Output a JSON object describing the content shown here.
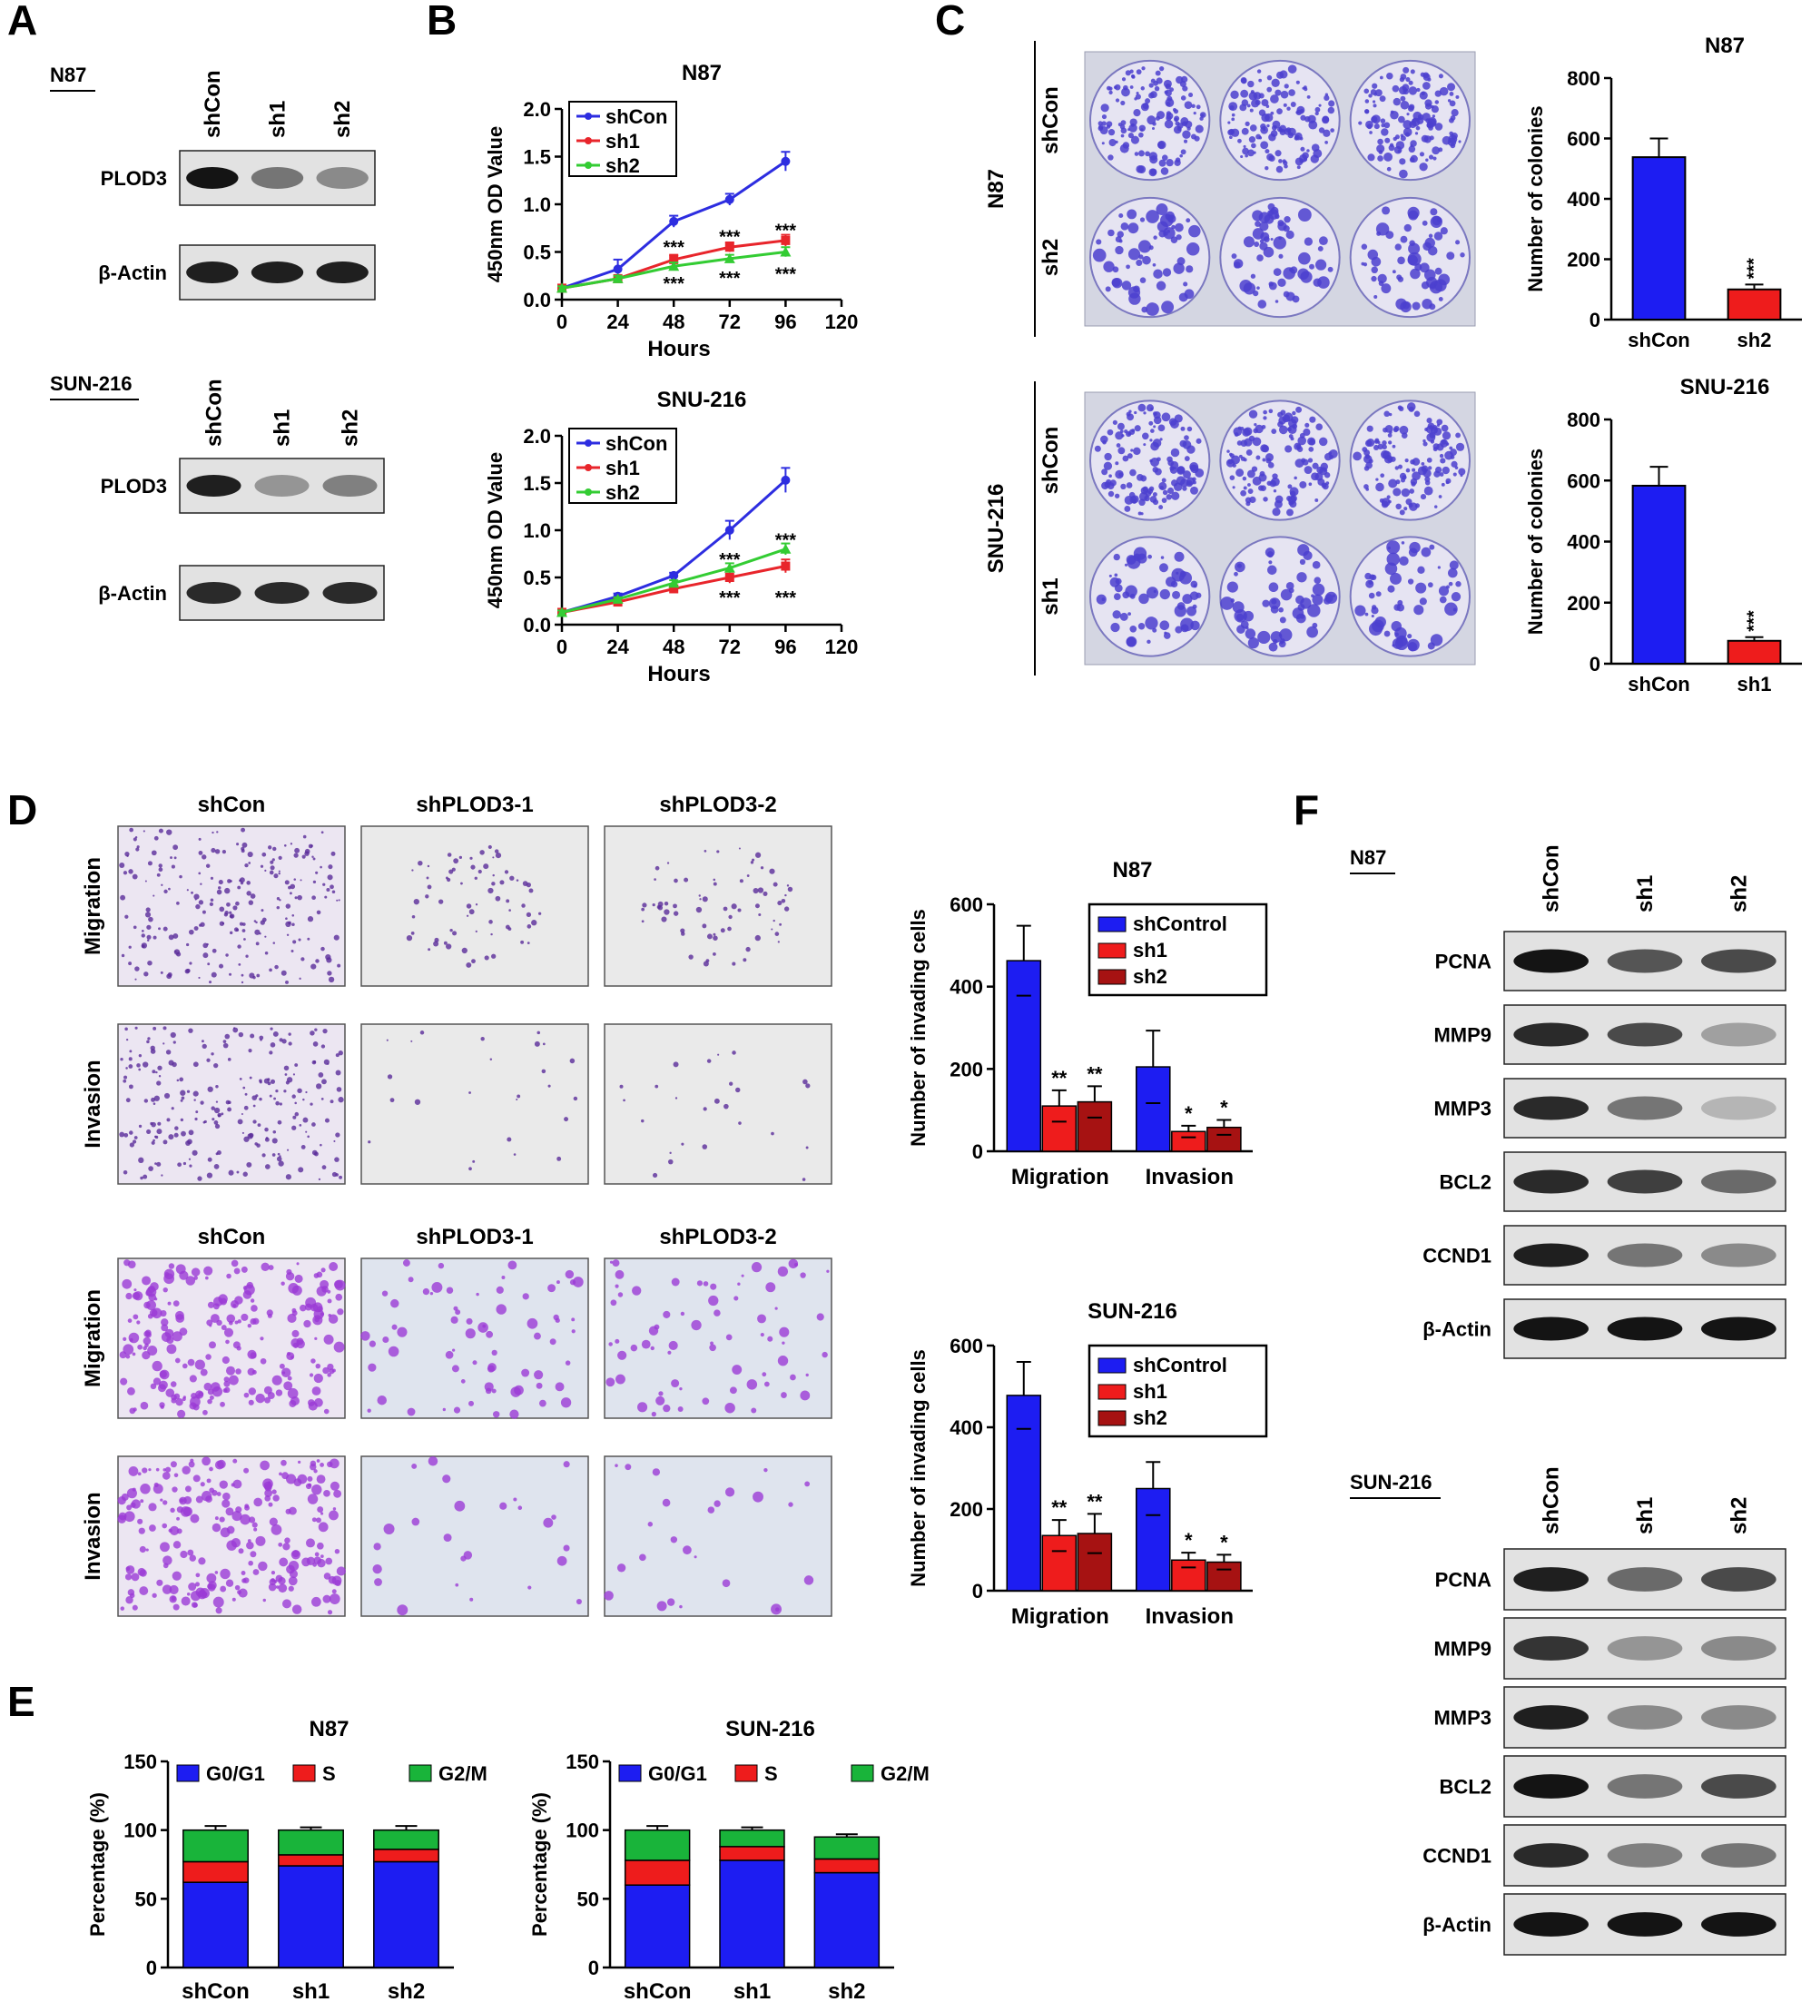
{
  "colors": {
    "blue": "#1d1df2",
    "red": "#ee1c1c",
    "green": "#19b43a",
    "darkred": "#a61212",
    "line_blue": "#2d2de0",
    "line_red": "#e8252b",
    "line_green": "#33cc33",
    "crystal_violet": "#4b3fcf",
    "purple_stain": "#9b3bd6"
  },
  "panel_letters": {
    "a": "A",
    "b": "B",
    "c": "C",
    "d": "D",
    "e": "E",
    "f": "F"
  },
  "panel_a": {
    "blots": [
      {
        "cell_line": "N87",
        "lanes": [
          "shCon",
          "sh1",
          "sh2"
        ],
        "bands": [
          "PLOD3",
          "β-Actin"
        ],
        "band_intensity": [
          [
            1.0,
            0.55,
            0.45
          ],
          [
            0.95,
            0.95,
            0.95
          ]
        ]
      },
      {
        "cell_line": "SUN-216",
        "lanes": [
          "shCon",
          "sh1",
          "sh2"
        ],
        "bands": [
          "PLOD3",
          "β-Actin"
        ],
        "band_intensity": [
          [
            0.95,
            0.4,
            0.5
          ],
          [
            0.9,
            0.9,
            0.9
          ]
        ]
      }
    ]
  },
  "panel_c": {
    "plate_images": [
      {
        "cell_line": "N87",
        "rows": [
          "shCon",
          "sh2"
        ]
      },
      {
        "cell_line": "SNU-216",
        "rows": [
          "shCon",
          "sh1"
        ]
      }
    ]
  },
  "panel_d": {
    "image_grids": [
      {
        "columns": [
          "shCon",
          "shPLOD3-1",
          "shPLOD3-2"
        ],
        "rows": [
          "Migration",
          "Invasion"
        ]
      },
      {
        "columns": [
          "shCon",
          "shPLOD3-1",
          "shPLOD3-2"
        ],
        "rows": [
          "Migration",
          "Invasion"
        ]
      }
    ]
  },
  "panel_f": {
    "blots": [
      {
        "cell_line": "N87",
        "lanes": [
          "shCon",
          "sh1",
          "sh2"
        ],
        "bands": [
          "PCNA",
          "MMP9",
          "MMP3",
          "BCL2",
          "CCND1",
          "β-Actin"
        ],
        "band_intensity": [
          [
            1.0,
            0.7,
            0.75
          ],
          [
            0.9,
            0.75,
            0.35
          ],
          [
            0.9,
            0.55,
            0.25
          ],
          [
            0.9,
            0.8,
            0.6
          ],
          [
            0.95,
            0.55,
            0.45
          ],
          [
            1.0,
            1.0,
            1.0
          ]
        ]
      },
      {
        "cell_line": "SUN-216",
        "lanes": [
          "shCon",
          "sh1",
          "sh2"
        ],
        "bands": [
          "PCNA",
          "MMP9",
          "MMP3",
          "BCL2",
          "CCND1",
          "β-Actin"
        ],
        "band_intensity": [
          [
            0.95,
            0.6,
            0.75
          ],
          [
            0.85,
            0.4,
            0.45
          ],
          [
            0.95,
            0.45,
            0.45
          ],
          [
            1.0,
            0.55,
            0.75
          ],
          [
            0.9,
            0.5,
            0.55
          ],
          [
            1.0,
            1.0,
            1.0
          ]
        ]
      }
    ]
  },
  "chart_data": [
    {
      "panel": "B",
      "type": "line",
      "title": "N87",
      "xlabel": "Hours",
      "ylabel": "450nm OD Value",
      "xlim": [
        0,
        120
      ],
      "ylim": [
        0,
        2.0
      ],
      "xticks": [
        "0",
        "24",
        "48",
        "72",
        "96",
        "120"
      ],
      "yticks": [
        "0.0",
        "0.5",
        "1.0",
        "1.5",
        "2.0"
      ],
      "x": [
        0,
        24,
        48,
        72,
        96
      ],
      "series": [
        {
          "name": "shCon",
          "values": [
            0.12,
            0.32,
            0.82,
            1.05,
            1.45
          ],
          "errors": [
            0.02,
            0.1,
            0.06,
            0.06,
            0.1
          ]
        },
        {
          "name": "sh1",
          "values": [
            0.12,
            0.22,
            0.42,
            0.55,
            0.62
          ],
          "errors": [
            0.02,
            0.03,
            0.05,
            0.05,
            0.06
          ]
        },
        {
          "name": "sh2",
          "values": [
            0.12,
            0.22,
            0.35,
            0.43,
            0.5
          ],
          "errors": [
            0.02,
            0.03,
            0.04,
            0.04,
            0.05
          ]
        }
      ],
      "annotations": [
        {
          "text": "***",
          "x": 48,
          "y": 0.56
        },
        {
          "text": "***",
          "x": 48,
          "y": 0.18
        },
        {
          "text": "***",
          "x": 72,
          "y": 0.67
        },
        {
          "text": "***",
          "x": 72,
          "y": 0.24
        },
        {
          "text": "***",
          "x": 96,
          "y": 0.74
        },
        {
          "text": "***",
          "x": 96,
          "y": 0.28
        }
      ],
      "legend": "top-left"
    },
    {
      "panel": "B",
      "type": "line",
      "title": "SNU-216",
      "xlabel": "Hours",
      "ylabel": "450nm OD Value",
      "xlim": [
        0,
        120
      ],
      "ylim": [
        0,
        2.0
      ],
      "xticks": [
        "0",
        "24",
        "48",
        "72",
        "96",
        "120"
      ],
      "yticks": [
        "0.0",
        "0.5",
        "1.0",
        "1.5",
        "2.0"
      ],
      "x": [
        0,
        24,
        48,
        72,
        96
      ],
      "series": [
        {
          "name": "shCon",
          "values": [
            0.13,
            0.3,
            0.52,
            1.0,
            1.53
          ],
          "errors": [
            0.02,
            0.03,
            0.03,
            0.1,
            0.13
          ]
        },
        {
          "name": "sh1",
          "values": [
            0.13,
            0.24,
            0.38,
            0.5,
            0.62
          ],
          "errors": [
            0.02,
            0.02,
            0.03,
            0.06,
            0.07
          ]
        },
        {
          "name": "sh2",
          "values": [
            0.13,
            0.27,
            0.44,
            0.6,
            0.8
          ],
          "errors": [
            0.02,
            0.02,
            0.03,
            0.05,
            0.06
          ]
        }
      ],
      "annotations": [
        {
          "text": "***",
          "x": 72,
          "y": 0.7
        },
        {
          "text": "***",
          "x": 72,
          "y": 0.3
        },
        {
          "text": "***",
          "x": 96,
          "y": 0.91
        },
        {
          "text": "***",
          "x": 96,
          "y": 0.3
        }
      ],
      "legend": "top-left"
    },
    {
      "panel": "C",
      "type": "bar",
      "title": "N87",
      "xlabel": "",
      "ylabel": "Number of colonies",
      "ylim": [
        0,
        800
      ],
      "yticks": [
        "0",
        "200",
        "400",
        "600",
        "800"
      ],
      "categories": [
        "shCon",
        "sh2"
      ],
      "values": [
        538,
        100
      ],
      "errors": [
        62,
        16
      ],
      "bar_colors": [
        "#1d1df2",
        "#ee1c1c"
      ],
      "annotations": [
        {
          "text": "***",
          "category": "sh2"
        }
      ]
    },
    {
      "panel": "C",
      "type": "bar",
      "title": "SNU-216",
      "xlabel": "",
      "ylabel": "Number of colonies",
      "ylim": [
        0,
        800
      ],
      "yticks": [
        "0",
        "200",
        "400",
        "600",
        "800"
      ],
      "categories": [
        "shCon",
        "sh1"
      ],
      "values": [
        583,
        75
      ],
      "errors": [
        62,
        12
      ],
      "bar_colors": [
        "#1d1df2",
        "#ee1c1c"
      ],
      "annotations": [
        {
          "text": "***",
          "category": "sh1"
        }
      ]
    },
    {
      "panel": "D",
      "type": "bar",
      "title": "N87",
      "xlabel": "",
      "ylabel": "Number of invading cells",
      "ylim": [
        0,
        600
      ],
      "yticks": [
        "0",
        "200",
        "400",
        "600"
      ],
      "categories": [
        "Migration",
        "Invasion"
      ],
      "series": [
        {
          "name": "shControl",
          "values": [
            463,
            205
          ],
          "errors": [
            85,
            88
          ]
        },
        {
          "name": "sh1",
          "values": [
            110,
            48
          ],
          "errors": [
            38,
            14
          ]
        },
        {
          "name": "sh2",
          "values": [
            120,
            58
          ],
          "errors": [
            38,
            18
          ]
        }
      ],
      "annotations": [
        {
          "text": "**",
          "category": "Migration",
          "series": "sh1"
        },
        {
          "text": "**",
          "category": "Migration",
          "series": "sh2"
        },
        {
          "text": "*",
          "category": "Invasion",
          "series": "sh1"
        },
        {
          "text": "*",
          "category": "Invasion",
          "series": "sh2"
        }
      ],
      "legend": "top-right"
    },
    {
      "panel": "D",
      "type": "bar",
      "title": "SUN-216",
      "xlabel": "",
      "ylabel": "Number of invading cells",
      "ylim": [
        0,
        600
      ],
      "yticks": [
        "0",
        "200",
        "400",
        "600"
      ],
      "categories": [
        "Migration",
        "Invasion"
      ],
      "series": [
        {
          "name": "shControl",
          "values": [
            478,
            250
          ],
          "errors": [
            82,
            65
          ]
        },
        {
          "name": "sh1",
          "values": [
            135,
            75
          ],
          "errors": [
            38,
            18
          ]
        },
        {
          "name": "sh2",
          "values": [
            140,
            70
          ],
          "errors": [
            48,
            18
          ]
        }
      ],
      "annotations": [
        {
          "text": "**",
          "category": "Migration",
          "series": "sh1"
        },
        {
          "text": "**",
          "category": "Migration",
          "series": "sh2"
        },
        {
          "text": "*",
          "category": "Invasion",
          "series": "sh1"
        },
        {
          "text": "*",
          "category": "Invasion",
          "series": "sh2"
        }
      ],
      "legend": "top-right"
    },
    {
      "panel": "E",
      "type": "bar",
      "stacked": true,
      "title": "N87",
      "xlabel": "",
      "ylabel": "Percentage (%)",
      "ylim": [
        0,
        150
      ],
      "yticks": [
        "0",
        "50",
        "100",
        "150"
      ],
      "categories": [
        "shCon",
        "sh1",
        "sh2"
      ],
      "series": [
        {
          "name": "G0/G1",
          "values": [
            62,
            74,
            77
          ],
          "errors": [
            2,
            2,
            2
          ]
        },
        {
          "name": "S",
          "values": [
            15,
            8,
            9
          ],
          "errors": [
            2,
            2,
            2
          ]
        },
        {
          "name": "G2/M",
          "values": [
            23,
            18,
            14
          ],
          "errors": [
            3,
            2,
            3
          ]
        }
      ],
      "legend": "top"
    },
    {
      "panel": "E",
      "type": "bar",
      "stacked": true,
      "title": "SUN-216",
      "xlabel": "",
      "ylabel": "Percentage (%)",
      "ylim": [
        0,
        150
      ],
      "yticks": [
        "0",
        "50",
        "100",
        "150"
      ],
      "categories": [
        "shCon",
        "sh1",
        "sh2"
      ],
      "series": [
        {
          "name": "G0/G1",
          "values": [
            60,
            78,
            69
          ],
          "errors": [
            2,
            2,
            2
          ]
        },
        {
          "name": "S",
          "values": [
            18,
            10,
            10
          ],
          "errors": [
            2,
            2,
            2
          ]
        },
        {
          "name": "G2/M",
          "values": [
            22,
            12,
            16
          ],
          "errors": [
            3,
            2,
            2
          ]
        }
      ],
      "legend": "top"
    }
  ]
}
